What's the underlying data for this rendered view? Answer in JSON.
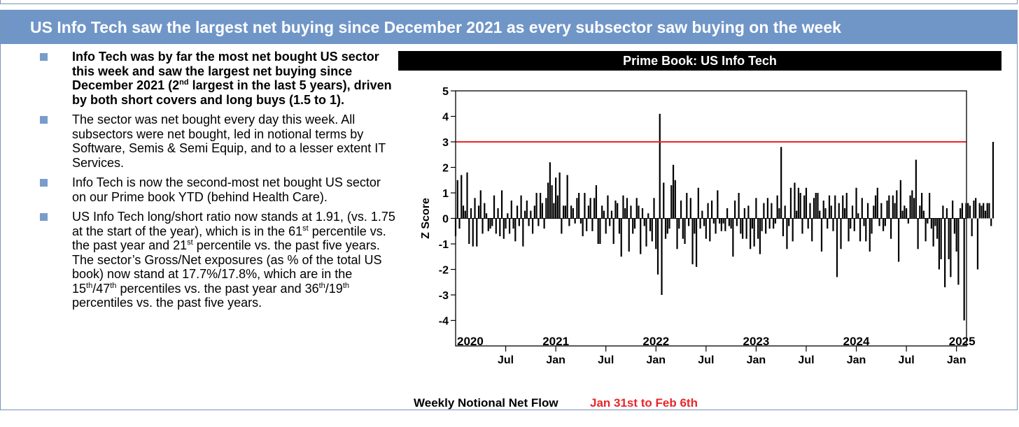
{
  "header": {
    "title": "US Info Tech saw the largest net buying since December 2021 as every subsector saw buying on the week"
  },
  "bullets": [
    {
      "bold": true,
      "text_a": "Info Tech was by far the most net bought US sector this week and saw the largest net buying since December 2021 (2",
      "sup_a": "nd",
      "text_b": " largest in the last 5 years), driven by both short covers and long buys (1.5 to 1)."
    },
    {
      "text": "The sector was net bought every day this week. All subsectors were net bought, led in notional terms by Software, Semis & Semi Equip, and to a lesser extent IT Services."
    },
    {
      "text": "Info Tech is now the second-most net bought US sector on our Prime book YTD (behind Health Care)."
    },
    {
      "text_a": "US Info Tech long/short ratio now stands at 1.91, (vs. 1.75 at the start of the year), which is in the 61",
      "sup_a": "st",
      "text_b": " percentile vs. the past year and 21",
      "sup_b": "st",
      "text_c": " percentile vs. the past five years. The sector’s Gross/Net exposures (as % of the total US book) now stand at 17.7%/17.8%, which are in the 15",
      "sup_c": "th",
      "text_d": "/47",
      "sup_d": "th",
      "text_e": " percentiles vs. the past year and 36",
      "sup_e": "th",
      "text_f": "/19",
      "sup_f": "th",
      "text_g": " percentiles vs. the past five years."
    }
  ],
  "footer": {
    "label": "Weekly Notional Net Flow",
    "date_range": "Jan 31st to Feb 6th"
  },
  "colors": {
    "banner_bg": "#7096c8",
    "bullet_square": "#7a9ccc",
    "threshold_line": "#e8262a",
    "date_range_text": "#e8262a",
    "bars": "#000000"
  },
  "chart_data": {
    "type": "bar",
    "title": "Prime Book: US Info Tech",
    "ylabel": "Z Score",
    "xlabel": "",
    "ylim": [
      -5,
      5
    ],
    "yticks": [
      -4,
      -3,
      -2,
      -1,
      0,
      1,
      2,
      3,
      4,
      5
    ],
    "xlim": [
      2020.0,
      2025.1
    ],
    "year_labels": [
      "2020",
      "2021",
      "2022",
      "2023",
      "2024",
      "2025"
    ],
    "month_ticks": [
      {
        "x": 2020.5,
        "label": "Jul"
      },
      {
        "x": 2021.0,
        "label": "Jan"
      },
      {
        "x": 2021.5,
        "label": "Jul"
      },
      {
        "x": 2022.0,
        "label": "Jan"
      },
      {
        "x": 2022.5,
        "label": "Jul"
      },
      {
        "x": 2023.0,
        "label": "Jan"
      },
      {
        "x": 2023.5,
        "label": "Jul"
      },
      {
        "x": 2024.0,
        "label": "Jan"
      },
      {
        "x": 2024.5,
        "label": "Jul"
      },
      {
        "x": 2025.0,
        "label": "Jan"
      }
    ],
    "threshold": 3,
    "grid": false,
    "series": [
      {
        "start": 2020.0,
        "step": 0.01923,
        "values": [
          -0.7,
          1.5,
          -0.4,
          1.7,
          0.5,
          0.3,
          1.8,
          -1.0,
          0.4,
          -1.1,
          0.8,
          -1.1,
          0.5,
          1.1,
          -0.6,
          0.6,
          0.2,
          -0.5,
          -0.4,
          -0.3,
          0.9,
          -0.6,
          0.4,
          -0.7,
          1.1,
          -0.8,
          -0.4,
          0.2,
          -0.6,
          0.7,
          -0.4,
          -0.9,
          0.5,
          -0.3,
          0.9,
          -1.1,
          0.3,
          0.7,
          -0.3,
          0.3,
          -0.6,
          0.5,
          1.0,
          -0.3,
          1.0,
          0.6,
          -0.4,
          0.8,
          1.4,
          2.2,
          1.3,
          0.6,
          1.6,
          0.9,
          1.8,
          -0.6,
          0.5,
          0.5,
          1.7,
          -0.3,
          0.5,
          0.4,
          -0.2,
          0.8,
          1.0,
          -0.2,
          -0.7,
          1.0,
          -0.5,
          0.5,
          0.8,
          -0.5,
          0.8,
          1.3,
          -1.0,
          -1.0,
          0.5,
          0.3,
          -0.6,
          0.9,
          -0.3,
          0.3,
          -1.0,
          0.7,
          0.6,
          -0.6,
          -1.5,
          0.9,
          0.4,
          0.8,
          -1.3,
          0.5,
          -0.6,
          -0.4,
          0.8,
          0.5,
          -1.4,
          0.4,
          -0.3,
          -1.1,
          0.2,
          -0.5,
          -0.9,
          0.8,
          -1.2,
          -2.2,
          4.1,
          -3.0,
          1.4,
          -0.8,
          -0.6,
          -0.4,
          1.3,
          2.1,
          1.5,
          -1.2,
          -0.4,
          0.7,
          -0.8,
          -1.0,
          1.0,
          -0.3,
          0.8,
          -1.8,
          -0.6,
          -1.9,
          1.2,
          -0.4,
          0.3,
          -0.3,
          -0.8,
          0.6,
          -0.9,
          0.7,
          -0.2,
          -0.6,
          1.1,
          -0.2,
          -0.5,
          -0.2,
          -0.5,
          0.4,
          -0.3,
          -0.4,
          -1.5,
          0.7,
          -0.3,
          1.0,
          -0.6,
          -0.8,
          0.4,
          -0.8,
          0.5,
          -1.2,
          -0.4,
          -1.1,
          0.8,
          -0.8,
          -1.4,
          -0.5,
          0.6,
          -0.6,
          0.8,
          -0.4,
          0.6,
          -0.4,
          -0.2,
          0.9,
          0.4,
          2.8,
          -0.7,
          0.5,
          -1.2,
          -0.3,
          1.2,
          -0.9,
          1.4,
          0.3,
          1.2,
          1.0,
          -0.6,
          0.9,
          1.2,
          -0.4,
          0.6,
          -0.9,
          0.8,
          1.0,
          1.0,
          0.3,
          -1.3,
          0.7,
          0.4,
          -0.4,
          0.9,
          0.5,
          -0.5,
          0.9,
          -2.3,
          0.6,
          -1.2,
          0.9,
          0.4,
          1.0,
          -0.9,
          -0.4,
          0.5,
          -0.5,
          1.2,
          0.2,
          -0.9,
          0.8,
          -0.3,
          -0.9,
          0.6,
          -1.3,
          -0.6,
          0.5,
          0.9,
          1.2,
          -0.3,
          0.6,
          -0.5,
          -0.3,
          0.7,
          0.9,
          -0.8,
          0.9,
          0.6,
          1.1,
          -1.7,
          1.5,
          0.3,
          0.5,
          0.4,
          -0.2,
          0.9,
          1.1,
          0.8,
          2.3,
          -1.2,
          0.5,
          1.0,
          0.3,
          -0.9,
          -0.2,
          1.0,
          -0.4,
          -1.1,
          -0.3,
          -0.8,
          -2.0,
          -1.6,
          0.5,
          -2.7,
          0.4,
          -1.6,
          -2.3,
          0.7,
          -0.6,
          -1.3,
          -2.6,
          0.4,
          0.6,
          -4.0,
          0.6,
          0.6,
          0.5,
          -0.7,
          0.7,
          0.8,
          -2.0,
          0.6,
          0.5,
          0.6,
          0.3,
          0.6,
          0.6,
          -0.3,
          3.0
        ]
      }
    ]
  }
}
